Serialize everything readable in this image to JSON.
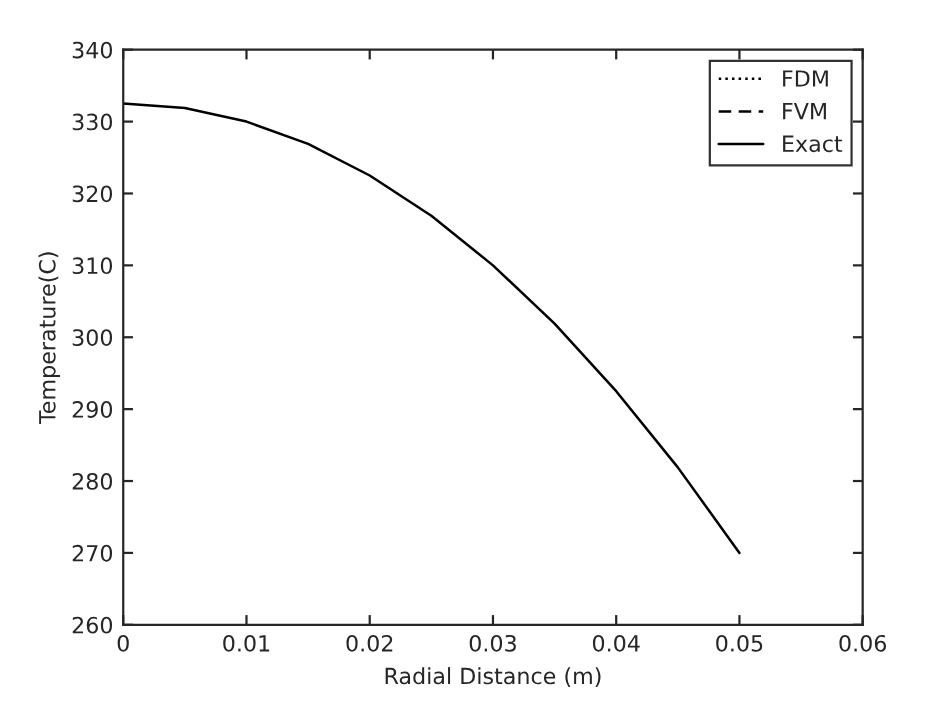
{
  "chart_data": {
    "type": "line",
    "xlabel": "Radial Distance (m)",
    "ylabel": "Temperature(C)",
    "x": [
      0,
      0.005,
      0.01,
      0.015,
      0.02,
      0.025,
      0.03,
      0.035,
      0.04,
      0.045,
      0.05
    ],
    "series": [
      {
        "name": "FDM",
        "color": "#000000",
        "line_style": "dotted",
        "values": [
          null,
          null,
          null,
          null,
          null,
          null,
          null,
          null,
          null,
          null,
          null
        ]
      },
      {
        "name": "FVM",
        "color": "#000000",
        "line_style": "dashed",
        "values": [
          null,
          null,
          null,
          null,
          null,
          null,
          null,
          null,
          null,
          null,
          null
        ]
      },
      {
        "name": "Exact",
        "color": "#000000",
        "line_style": "solid",
        "values": [
          332.5,
          331.9,
          330.0,
          326.9,
          322.5,
          316.9,
          310.0,
          301.9,
          292.5,
          281.9,
          270
        ]
      }
    ],
    "xlim": [
      0,
      0.06
    ],
    "xticks": [
      0,
      0.01,
      0.02,
      0.03,
      0.04,
      0.05,
      0.06
    ],
    "ylim": [
      260,
      340
    ],
    "yticks": [
      260,
      270,
      280,
      290,
      300,
      310,
      320,
      330,
      340
    ],
    "grid": false,
    "legend": "top right"
  }
}
